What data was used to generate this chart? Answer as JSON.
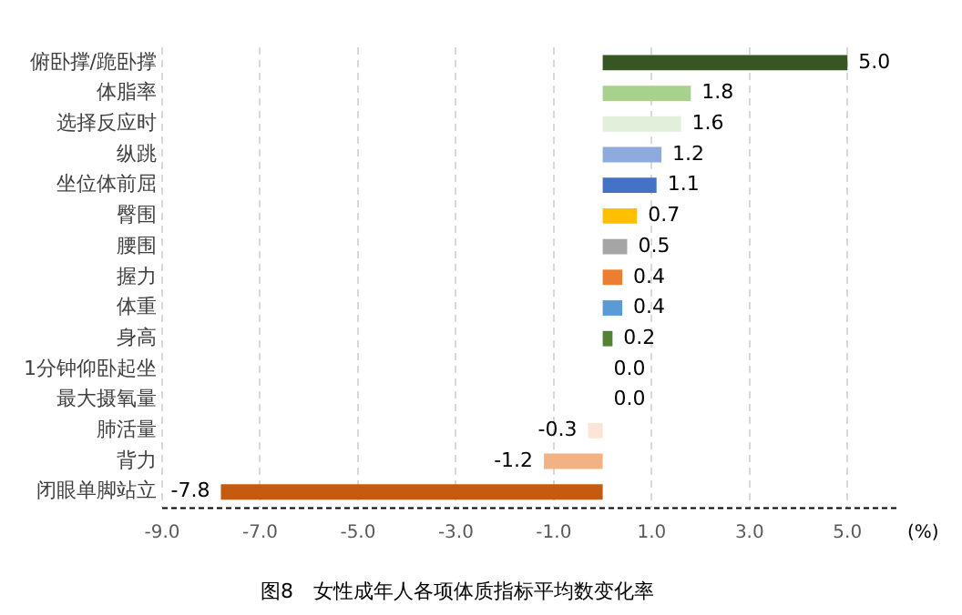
{
  "chart_data": {
    "type": "bar",
    "orientation": "horizontal",
    "title": "图8　女性成年人各项体质指标平均数变化率",
    "xlabel": "(%)",
    "categories": [
      "俯卧撑/跪卧撑",
      "体脂率",
      "选择反应时",
      "纵跳",
      "坐位体前屈",
      "臀围",
      "腰围",
      "握力",
      "体重",
      "身高",
      "1分钟仰卧起坐",
      "最大摄氧量",
      "肺活量",
      "背力",
      "闭眼单脚站立"
    ],
    "values": [
      5.0,
      1.8,
      1.6,
      1.2,
      1.1,
      0.7,
      0.5,
      0.4,
      0.4,
      0.2,
      0.0,
      0.0,
      -0.3,
      -1.2,
      -7.8
    ],
    "colors": [
      "#375623",
      "#a9d18e",
      "#e2efda",
      "#8faadc",
      "#4472c4",
      "#ffc000",
      "#a5a5a5",
      "#ed7d31",
      "#5b9bd5",
      "#548235",
      "#70ad47",
      "#70ad47",
      "#fbe5d6",
      "#f4b183",
      "#c55a11"
    ],
    "value_labels": [
      "5.0",
      "1.8",
      "1.6",
      "1.2",
      "1.1",
      "0.7",
      "0.5",
      "0.4",
      "0.4",
      "0.2",
      "0.0",
      "0.0",
      "-0.3",
      "-1.2",
      "-7.8"
    ],
    "xlim": [
      -9,
      6
    ],
    "xticks": [
      {
        "value": -9,
        "label": "-9.0"
      },
      {
        "value": -7,
        "label": "-7.0"
      },
      {
        "value": -5,
        "label": "-5.0"
      },
      {
        "value": -3,
        "label": "-3.0"
      },
      {
        "value": -1,
        "label": "-1.0"
      },
      {
        "value": 1,
        "label": "1.0"
      },
      {
        "value": 3,
        "label": "3.0"
      },
      {
        "value": 5,
        "label": "5.0"
      }
    ],
    "grid": "x",
    "legend": false
  }
}
